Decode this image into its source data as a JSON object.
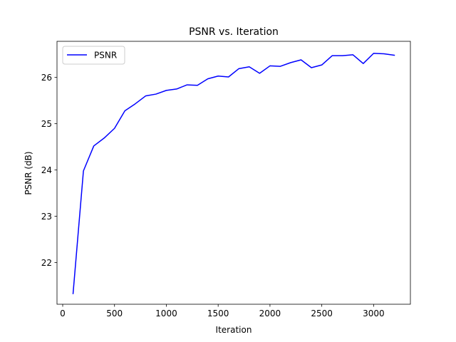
{
  "chart_data": {
    "type": "line",
    "title": "PSNR vs. Iteration",
    "xlabel": "Iteration",
    "ylabel": "PSNR (dB)",
    "xlim": [
      -55,
      3355
    ],
    "ylim": [
      21.1,
      26.78
    ],
    "xticks": [
      0,
      500,
      1000,
      1500,
      2000,
      2500,
      3000
    ],
    "yticks": [
      22,
      23,
      24,
      25,
      26
    ],
    "grid": false,
    "legend_position": "upper-left",
    "series": [
      {
        "name": "PSNR",
        "color": "#0000ff",
        "x": [
          100,
          200,
          300,
          400,
          500,
          600,
          700,
          800,
          900,
          1000,
          1100,
          1200,
          1300,
          1400,
          1500,
          1600,
          1700,
          1800,
          1900,
          2000,
          2100,
          2200,
          2300,
          2400,
          2500,
          2600,
          2700,
          2800,
          2900,
          3000,
          3100,
          3200
        ],
        "y": [
          21.33,
          23.98,
          24.52,
          24.69,
          24.9,
          25.28,
          25.43,
          25.6,
          25.64,
          25.72,
          25.75,
          25.84,
          25.83,
          25.97,
          26.03,
          26.01,
          26.19,
          26.23,
          26.09,
          26.25,
          26.24,
          26.32,
          26.38,
          26.21,
          26.27,
          26.47,
          26.47,
          26.49,
          26.3,
          26.52,
          26.51,
          26.48
        ]
      }
    ]
  }
}
